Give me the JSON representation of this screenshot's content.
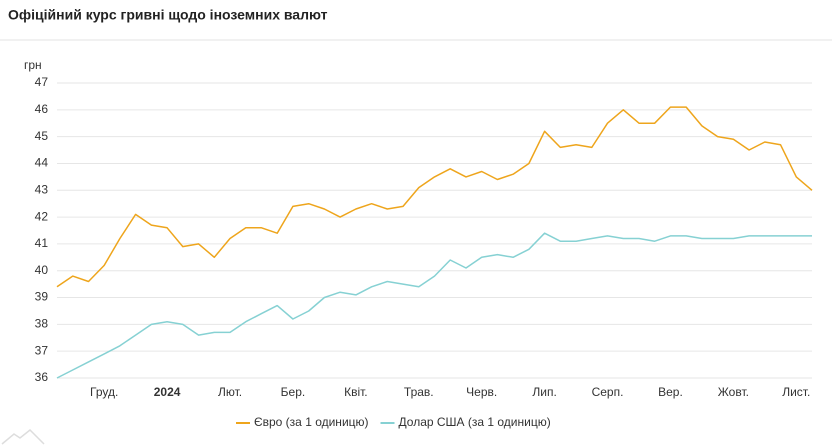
{
  "chart_data": {
    "type": "line",
    "title": "Офіційний курс гривні щодо іноземних валют",
    "y_label": "грн",
    "categories": [
      null,
      null,
      null,
      "Груд.",
      null,
      null,
      null,
      "2024",
      null,
      null,
      null,
      "Лют.",
      null,
      null,
      null,
      "Бер.",
      null,
      null,
      null,
      "Квіт.",
      null,
      null,
      null,
      "Трав.",
      null,
      null,
      null,
      "Черв.",
      null,
      null,
      null,
      "Лип.",
      null,
      null,
      null,
      "Серп.",
      null,
      null,
      null,
      "Вер.",
      null,
      null,
      null,
      "Жовт.",
      null,
      null,
      null,
      "Лист.",
      null
    ],
    "series": [
      {
        "name": "Євро (за 1 одиницю)",
        "color": "#eea51c",
        "values": [
          39.4,
          39.8,
          39.6,
          40.2,
          41.2,
          42.1,
          41.7,
          41.6,
          40.9,
          41.0,
          40.5,
          41.2,
          41.6,
          41.6,
          41.4,
          42.4,
          42.5,
          42.3,
          42.0,
          42.3,
          42.5,
          42.3,
          42.4,
          43.1,
          43.5,
          43.8,
          43.5,
          43.7,
          43.4,
          43.6,
          44.0,
          45.2,
          44.6,
          44.7,
          44.6,
          45.5,
          46.0,
          45.5,
          45.5,
          46.1,
          46.1,
          45.4,
          45.0,
          44.9,
          44.5,
          44.8,
          44.7,
          43.5,
          43.0
        ]
      },
      {
        "name": "Долар США (за 1 одиницю)",
        "color": "#86d1d3",
        "values": [
          36.0,
          36.3,
          36.6,
          36.9,
          37.2,
          37.6,
          38.0,
          38.1,
          38.0,
          37.6,
          37.7,
          37.7,
          38.1,
          38.4,
          38.7,
          38.2,
          38.5,
          39.0,
          39.2,
          39.1,
          39.4,
          39.6,
          39.5,
          39.4,
          39.8,
          40.4,
          40.1,
          40.5,
          40.6,
          40.5,
          40.8,
          41.4,
          41.1,
          41.1,
          41.2,
          41.3,
          41.2,
          41.2,
          41.1,
          41.3,
          41.3,
          41.2,
          41.2,
          41.2,
          41.3,
          41.3,
          41.3,
          41.3,
          41.3
        ]
      }
    ],
    "ylim": [
      36,
      47
    ],
    "yticks": [
      36,
      37,
      38,
      39,
      40,
      41,
      42,
      43,
      44,
      45,
      46,
      47
    ],
    "grid": true,
    "legend": "bottom"
  }
}
